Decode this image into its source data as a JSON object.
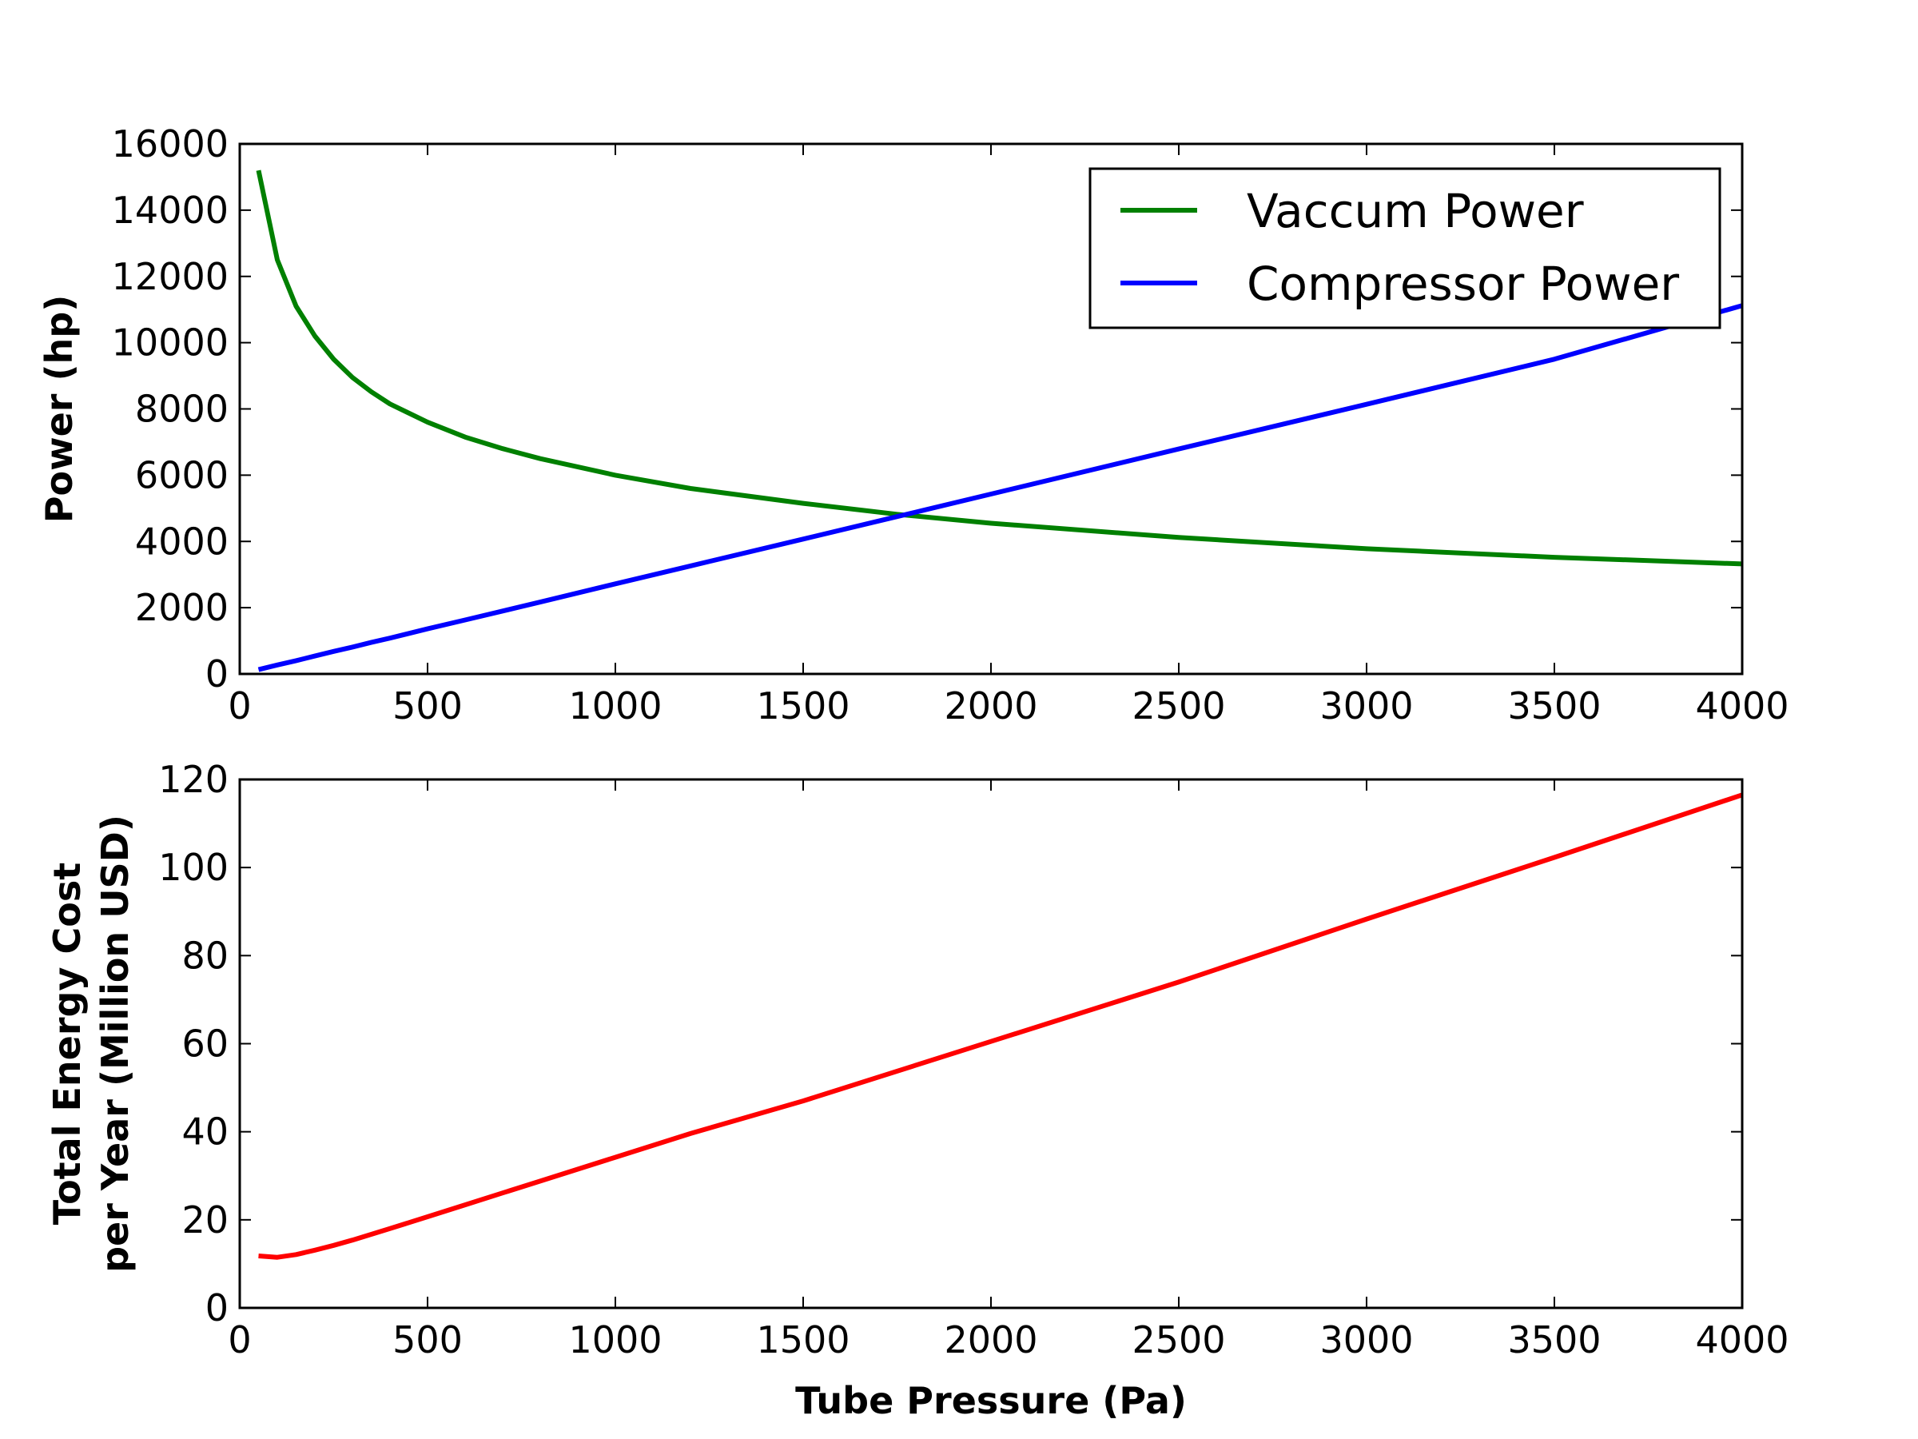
{
  "chart_data": [
    {
      "type": "line",
      "title": "",
      "xlabel": "",
      "ylabel": "Power (hp)",
      "xlim": [
        0,
        4000
      ],
      "ylim": [
        0,
        16000
      ],
      "xticks": [
        0,
        500,
        1000,
        1500,
        2000,
        2500,
        3000,
        3500,
        4000
      ],
      "yticks": [
        0,
        2000,
        4000,
        6000,
        8000,
        10000,
        12000,
        14000,
        16000
      ],
      "grid": false,
      "legend": "top-right",
      "x": [
        50,
        100,
        150,
        200,
        250,
        300,
        350,
        400,
        500,
        600,
        700,
        800,
        1000,
        1200,
        1500,
        1750,
        2000,
        2500,
        3000,
        3500,
        4000
      ],
      "series": [
        {
          "name": "Vaccum Power",
          "color": "#008000",
          "values": [
            15200,
            12500,
            11100,
            10200,
            9500,
            8950,
            8520,
            8150,
            7600,
            7150,
            6800,
            6500,
            6000,
            5600,
            5150,
            4820,
            4550,
            4120,
            3780,
            3520,
            3320
          ]
        },
        {
          "name": "Compressor Power",
          "color": "#0000ff",
          "values": [
            130,
            270,
            400,
            540,
            680,
            810,
            950,
            1080,
            1360,
            1630,
            1900,
            2170,
            2720,
            3260,
            4070,
            4750,
            5430,
            6790,
            8140,
            9500,
            11120
          ]
        }
      ]
    },
    {
      "type": "line",
      "title": "",
      "xlabel": "Tube Pressure (Pa)",
      "ylabel_lines": [
        "Total Energy Cost",
        "per Year (Million USD)"
      ],
      "xlim": [
        0,
        4000
      ],
      "ylim": [
        0,
        120
      ],
      "xticks": [
        0,
        500,
        1000,
        1500,
        2000,
        2500,
        3000,
        3500,
        4000
      ],
      "yticks": [
        0,
        20,
        40,
        60,
        80,
        100,
        120
      ],
      "grid": false,
      "x": [
        50,
        100,
        150,
        200,
        250,
        300,
        350,
        400,
        500,
        600,
        700,
        800,
        1000,
        1200,
        1500,
        2000,
        2500,
        3000,
        3500,
        4000
      ],
      "series": [
        {
          "color": "#ff0000",
          "values": [
            11.8,
            11.5,
            12.1,
            13.1,
            14.2,
            15.4,
            16.7,
            18.0,
            20.7,
            23.4,
            26.1,
            28.8,
            34.2,
            39.6,
            47.0,
            60.5,
            74.0,
            88.3,
            102.3,
            116.5
          ]
        }
      ]
    }
  ]
}
